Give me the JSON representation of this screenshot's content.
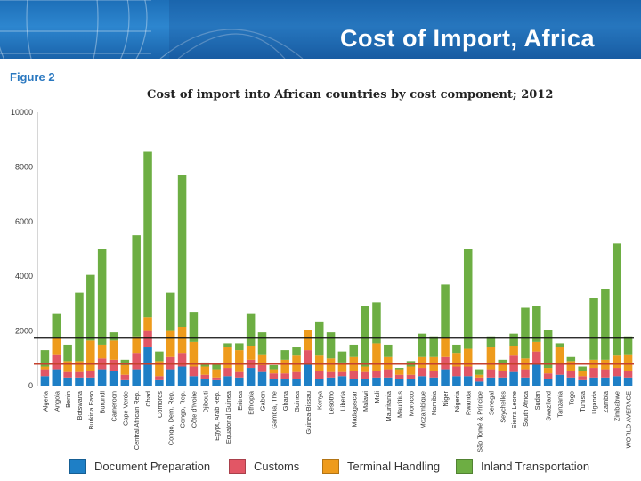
{
  "header": {
    "title": "Cost of Import, Africa",
    "figure_label": "Figure 2"
  },
  "colors": {
    "document": "#1e7fc6",
    "customs": "#e25665",
    "terminal": "#ee9b1c",
    "inland": "#6dae43",
    "black_line": "#111111",
    "red_line": "#c5412e"
  },
  "chart_data": {
    "type": "bar",
    "stacked": true,
    "title": "Cost of import into African countries by cost component; 2012",
    "xlabel": "",
    "ylabel": "",
    "ylim": [
      0,
      10000
    ],
    "yticks": [
      0,
      2000,
      4000,
      6000,
      8000,
      10000
    ],
    "grid": false,
    "legend_position": "bottom",
    "categories": [
      "Algeria",
      "Angola",
      "Benin",
      "Botswana",
      "Burkina Faso",
      "Burundi",
      "Cameroon",
      "Cape Verde",
      "Central African Rep.",
      "Chad",
      "Comoros",
      "Congo, Dem. Rep.",
      "Congo, Rep.",
      "Côte d'Ivoire",
      "Djibouti",
      "Egypt, Arab Rep.",
      "Equatorial Guinea",
      "Eritrea",
      "Ethiopia",
      "Gabon",
      "Gambia, The",
      "Ghana",
      "Guinea",
      "Guinea-Bissau",
      "Kenya",
      "Lesotho",
      "Liberia",
      "Madagascar",
      "Malawi",
      "Mali",
      "Mauritania",
      "Mauritius",
      "Morocco",
      "Mozambique",
      "Namibia",
      "Niger",
      "Nigeria",
      "Rwanda",
      "São Tomé & Principe",
      "Senegal",
      "Seychelles",
      "Sierra Leone",
      "South Africa",
      "Sudan",
      "Swaziland",
      "Tanzania",
      "Togo",
      "Tunisia",
      "Uganda",
      "Zambia",
      "Zimbabwe",
      "WORLD AVERAGE"
    ],
    "series": [
      {
        "name": "Document Preparation",
        "values": [
          350,
          600,
          300,
          300,
          300,
          600,
          550,
          200,
          600,
          1400,
          200,
          600,
          700,
          350,
          250,
          200,
          350,
          300,
          650,
          500,
          250,
          250,
          250,
          800,
          250,
          300,
          350,
          250,
          250,
          300,
          300,
          250,
          250,
          350,
          300,
          600,
          350,
          350,
          150,
          300,
          300,
          500,
          300,
          800,
          250,
          400,
          300,
          200,
          300,
          300,
          350,
          300
        ]
      },
      {
        "name": "Customs",
        "values": [
          250,
          550,
          200,
          200,
          250,
          400,
          400,
          200,
          600,
          600,
          150,
          450,
          500,
          350,
          150,
          100,
          300,
          200,
          300,
          250,
          200,
          200,
          250,
          500,
          300,
          200,
          150,
          300,
          250,
          250,
          300,
          150,
          150,
          300,
          250,
          450,
          350,
          350,
          150,
          300,
          250,
          600,
          300,
          450,
          200,
          400,
          250,
          150,
          350,
          300,
          300,
          250
        ]
      },
      {
        "name": "Terminal Handling",
        "values": [
          100,
          600,
          400,
          400,
          1100,
          500,
          700,
          350,
          600,
          500,
          550,
          950,
          950,
          900,
          300,
          300,
          750,
          800,
          500,
          400,
          150,
          500,
          600,
          750,
          550,
          500,
          350,
          500,
          200,
          1000,
          450,
          200,
          300,
          400,
          500,
          700,
          500,
          650,
          100,
          800,
          250,
          350,
          400,
          350,
          200,
          600,
          350,
          200,
          300,
          350,
          450,
          600
        ]
      },
      {
        "name": "Inland Transportation",
        "values": [
          600,
          900,
          600,
          2500,
          2400,
          3500,
          300,
          200,
          3700,
          6050,
          350,
          1400,
          5550,
          1100,
          150,
          200,
          150,
          250,
          1200,
          800,
          150,
          350,
          300,
          0,
          1250,
          950,
          400,
          450,
          2200,
          1500,
          450,
          50,
          200,
          850,
          750,
          1950,
          300,
          3650,
          200,
          400,
          150,
          450,
          1850,
          1300,
          1400,
          150,
          150,
          150,
          2250,
          2600,
          4100,
          650
        ]
      }
    ],
    "annotations": [
      {
        "type": "horizontal_line",
        "label": "black",
        "value": 1750
      },
      {
        "type": "horizontal_line",
        "label": "red",
        "value": 800
      }
    ]
  },
  "legend": {
    "items": [
      {
        "label": "Document Preparation"
      },
      {
        "label": "Customs"
      },
      {
        "label": "Terminal Handling"
      },
      {
        "label": "Inland Transportation"
      }
    ]
  }
}
